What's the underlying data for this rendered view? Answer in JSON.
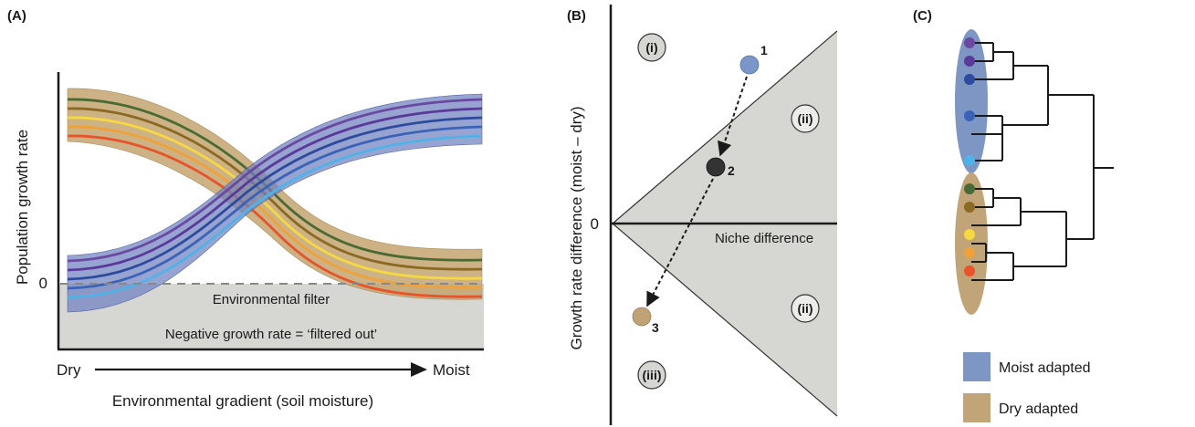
{
  "panel_a": {
    "label": "(A)",
    "y_title": "Population growth rate",
    "zero_label": "0",
    "x_start": "Dry",
    "x_end": "Moist",
    "x_title": "Environmental gradient (soil moisture)",
    "filter_label": "Environmental filter",
    "negative_label": "Negative growth rate = ‘filtered out’",
    "moist_colors": [
      "#6a4aa0",
      "#5a3a98",
      "#2e4a9c",
      "#3a63b8",
      "#4fb3e8"
    ],
    "dry_colors": [
      "#4a6a34",
      "#8a6a22",
      "#f5d842",
      "#f0a23a",
      "#e8532a"
    ]
  },
  "panel_b": {
    "label": "(B)",
    "y_title": "Growth rate difference (moist – dry)",
    "zero_label": "0",
    "x_title": "Niche difference",
    "region_i": "(i)",
    "region_ii_top": "(ii)",
    "region_ii_bottom": "(ii)",
    "region_iii": "(iii)",
    "points": [
      {
        "label": "1",
        "color": "#7a96c8"
      },
      {
        "label": "2",
        "color": "#333333"
      },
      {
        "label": "3",
        "color": "#bfa275"
      }
    ]
  },
  "panel_c": {
    "label": "(C)",
    "moist_tips": [
      "#6a4aa0",
      "#5a3a98",
      "#2e4a9c",
      "#3a63b8",
      "#4fb3e8"
    ],
    "dry_tips": [
      "#4a6a34",
      "#8a6a22",
      "#f5d842",
      "#f0a23a",
      "#e8532a"
    ],
    "legend": [
      {
        "label": "Moist adapted",
        "color": "#7e96c4"
      },
      {
        "label": "Dry adapted",
        "color": "#c1a477"
      }
    ]
  }
}
